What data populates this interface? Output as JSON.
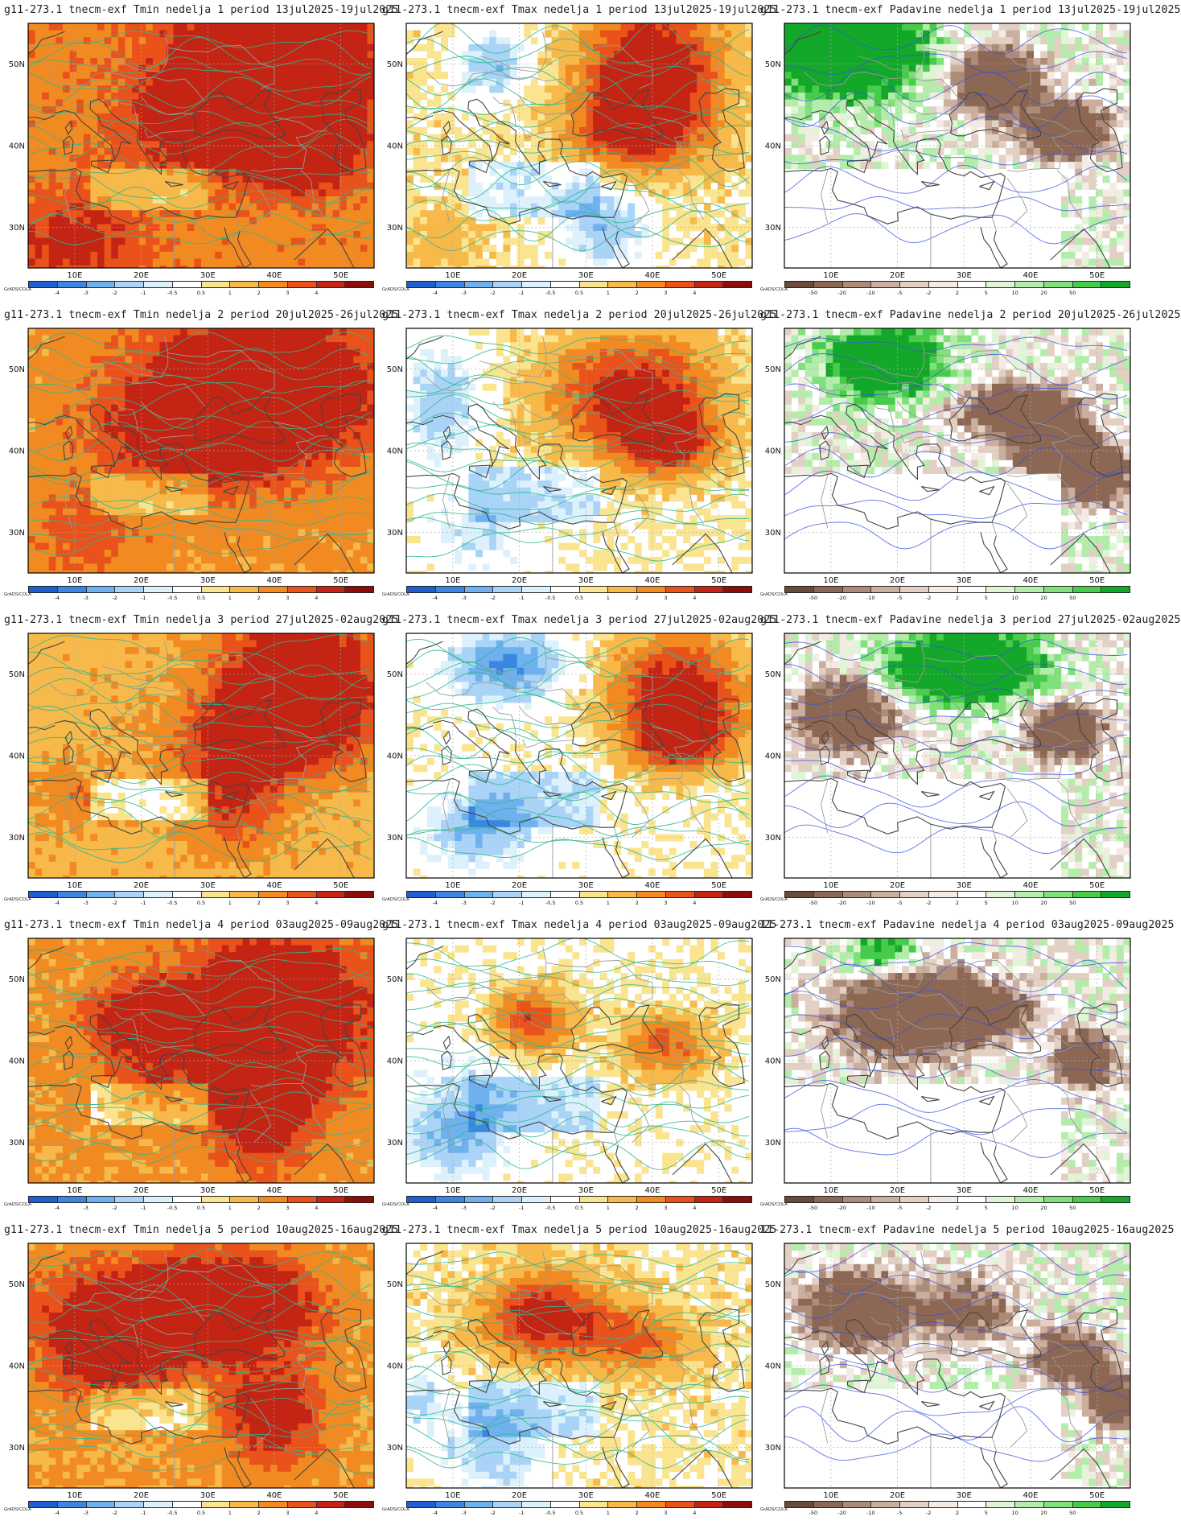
{
  "panels": [
    {
      "title": "g11-273.1 tnecm-exf Tmin nedelja 1 period 13jul2025-19jul2025",
      "type": "tmin"
    },
    {
      "title": "g11-273.1 tnecm-exf Tmax nedelja 1 period 13jul2025-19jul2025",
      "type": "tmax"
    },
    {
      "title": "g11-273.1 tnecm-exf Padavine nedelja 1 period 13jul2025-19jul2025",
      "type": "precip"
    },
    {
      "title": "g11-273.1 tnecm-exf Tmin nedelja 2 period 20jul2025-26jul2025",
      "type": "tmin"
    },
    {
      "title": "g11-273.1 tnecm-exf Tmax nedelja 2 period 20jul2025-26jul2025",
      "type": "tmax"
    },
    {
      "title": "g11-273.1 tnecm-exf Padavine nedelja 2 period 20jul2025-26jul2025",
      "type": "precip"
    },
    {
      "title": "g11-273.1 tnecm-exf Tmin nedelja 3 period 27jul2025-02aug2025",
      "type": "tmin"
    },
    {
      "title": "g11-273.1 tnecm-exf Tmax nedelja 3 period 27jul2025-02aug2025",
      "type": "tmax"
    },
    {
      "title": "g11-273.1 tnecm-exf Padavine nedelja 3 period 27jul2025-02aug2025",
      "type": "precip"
    },
    {
      "title": "g11-273.1 tnecm-exf Tmin nedelja 4 period 03aug2025-09aug2025",
      "type": "tmin"
    },
    {
      "title": "g11-273.1 tnecm-exf Tmax nedelja 4 period 03aug2025-09aug2025",
      "type": "tmax"
    },
    {
      "title": "11-273.1 tnecm-exf Padavine nedelja 4 period 03aug2025-09aug2025",
      "type": "precip"
    },
    {
      "title": "g11-273.1 tnecm-exf Tmin nedelja 5 period 10aug2025-16aug2025",
      "type": "tmin"
    },
    {
      "title": "g11-273.1 tnecm-exf Tmax nedelja 5 period 10aug2025-16aug2025",
      "type": "tmax"
    },
    {
      "title": "11-273.1 tnecm-exf Padavine nedelja 5 period 10aug2025-16aug2025",
      "type": "precip"
    }
  ],
  "axes": {
    "lat_labels": [
      "50N",
      "40N",
      "30N"
    ],
    "lon_labels": [
      "10E",
      "20E",
      "30E",
      "40E",
      "50E"
    ]
  },
  "credit": "GrADS/COLA",
  "colorbars": {
    "temp": {
      "labels": [
        "-4",
        "-3",
        "-2",
        "-1",
        "-0.5",
        "0.5",
        "1",
        "2",
        "3",
        "4"
      ],
      "colors": [
        "#1f5fd0",
        "#3a86e0",
        "#6fb0ef",
        "#a9d3f7",
        "#ddf1fc",
        "#ffffff",
        "#fbe48f",
        "#f7b94a",
        "#f28a22",
        "#e9521a",
        "#c42413",
        "#8d0d0b"
      ]
    },
    "precip": {
      "labels": [
        "-50",
        "-20",
        "-10",
        "-5",
        "-2",
        "2",
        "5",
        "10",
        "20",
        "50"
      ],
      "colors": [
        "#6b4a3a",
        "#8c6753",
        "#ae8b78",
        "#cbae9d",
        "#e3d0c4",
        "#f4ebe5",
        "#ffffff",
        "#dff5d6",
        "#b3ecab",
        "#80e07b",
        "#47cc4a",
        "#14a82a"
      ]
    }
  },
  "colors": {
    "temp_contour": "#2fb88c",
    "precip_contour": "#3550e0",
    "coast": "#444444",
    "border": "#9a9a9a"
  }
}
